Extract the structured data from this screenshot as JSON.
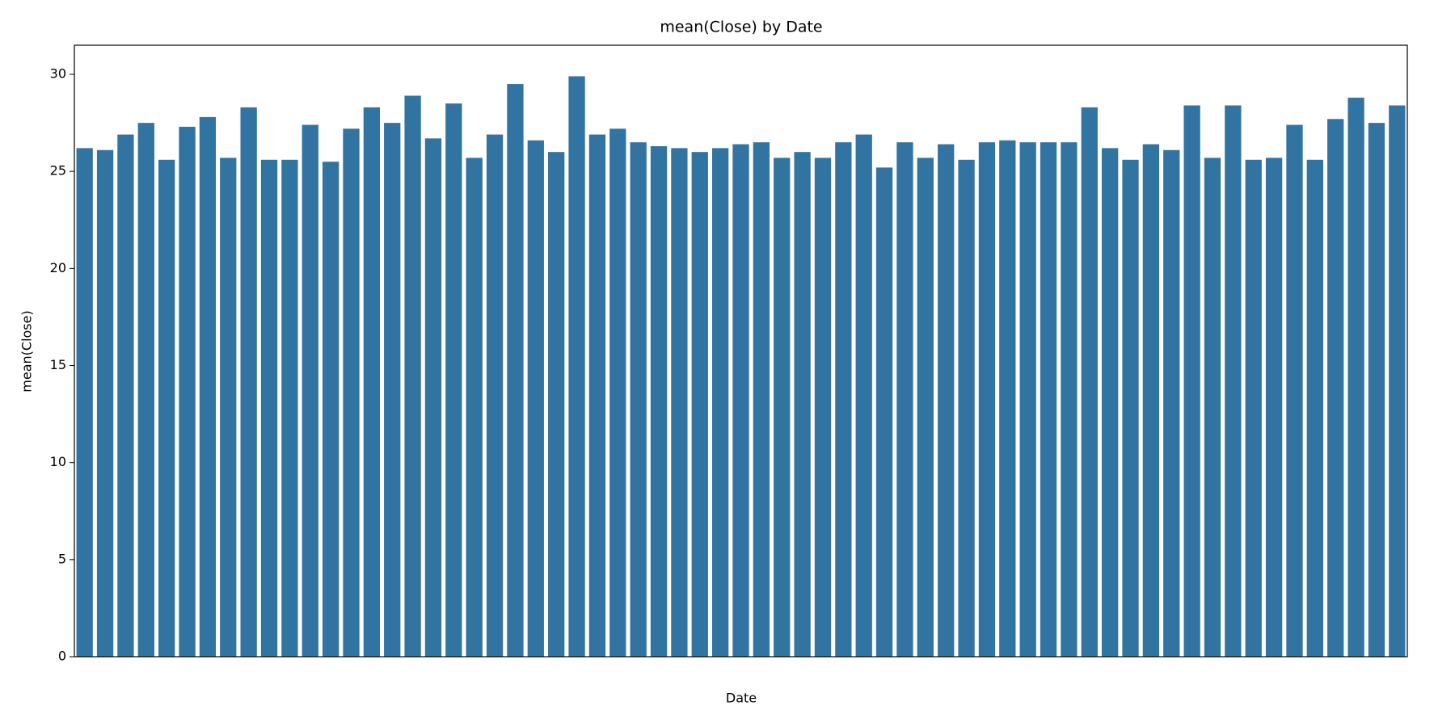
{
  "chart_data": {
    "type": "bar",
    "title": "mean(Close) by Date",
    "x_label": "Date",
    "y_label": "mean(Close)",
    "categories": [
      null,
      null,
      null,
      null,
      null,
      null,
      null,
      null,
      null,
      null,
      null,
      null,
      null,
      null,
      null,
      null,
      null,
      null,
      null,
      null,
      null,
      null,
      null,
      null,
      null,
      null,
      null,
      null,
      null,
      null,
      null,
      null,
      null,
      null,
      null,
      null,
      null,
      null,
      null,
      null,
      null,
      null,
      null,
      null,
      null,
      null,
      null,
      null,
      null,
      null,
      null,
      null,
      null,
      null,
      null,
      null,
      null,
      null,
      null,
      null,
      null,
      null,
      null,
      null,
      null
    ],
    "values": [
      26.2,
      26.1,
      26.9,
      27.5,
      25.6,
      27.3,
      27.8,
      25.7,
      28.3,
      25.6,
      25.6,
      27.4,
      25.5,
      27.2,
      28.3,
      27.5,
      28.9,
      26.7,
      28.5,
      25.7,
      26.9,
      29.5,
      26.6,
      26.0,
      29.9,
      26.9,
      27.2,
      26.5,
      26.3,
      26.2,
      26.0,
      26.2,
      26.4,
      26.5,
      25.7,
      26.0,
      25.7,
      26.5,
      26.9,
      25.2,
      26.5,
      25.7,
      26.4,
      25.6,
      26.5,
      26.6,
      26.5,
      26.5,
      26.5,
      28.3,
      26.2,
      25.6,
      26.4,
      26.1,
      28.4,
      25.7,
      28.4,
      25.6,
      25.7,
      27.4,
      25.6,
      27.7,
      28.8,
      27.5,
      28.4
    ],
    "color": "#3274a1",
    "ylim": [
      0,
      31.5
    ],
    "yticks": [
      0,
      5,
      10,
      15,
      20,
      25,
      30
    ],
    "grid": false
  }
}
